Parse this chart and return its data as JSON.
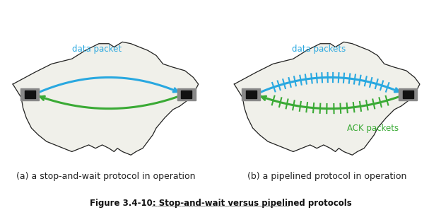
{
  "bg_color": "#f5f5f0",
  "usa_outline_color": "#222222",
  "blue_color": "#29a8e0",
  "green_color": "#3aaa35",
  "router_color_outer": "#888888",
  "router_color_inner": "#111111",
  "caption_a": "(a) a stop-and-wait protocol in operation",
  "caption_b": "(b) a pipelined protocol in operation",
  "figure_caption": "Figure 3.4-10: Stop-and-wait versus pipelined protocols",
  "label_data_packet": "data packet",
  "label_data_packets": "data packets",
  "label_ack_packets": "ACK packets",
  "caption_fontsize": 9,
  "figure_caption_fontsize": 8.5,
  "label_fontsize": 8.5,
  "tick_count_blue": 22,
  "tick_count_green": 18
}
